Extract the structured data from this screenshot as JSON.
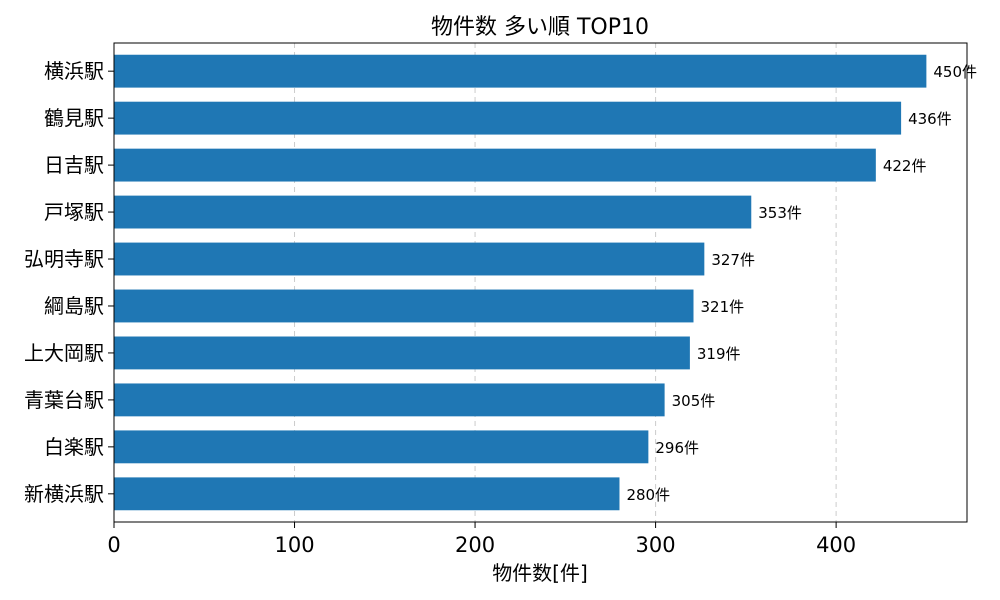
{
  "chart_data": {
    "type": "bar",
    "orientation": "horizontal",
    "title": "物件数 多い順 TOP10",
    "xlabel": "物件数[件]",
    "ylabel": "",
    "categories": [
      "横浜駅",
      "鶴見駅",
      "日吉駅",
      "戸塚駅",
      "弘明寺駅",
      "綱島駅",
      "上大岡駅",
      "青葉台駅",
      "白楽駅",
      "新横浜駅"
    ],
    "values": [
      450,
      436,
      422,
      353,
      327,
      321,
      319,
      305,
      296,
      280
    ],
    "data_labels": [
      "450件",
      "436件",
      "422件",
      "353件",
      "327件",
      "321件",
      "319件",
      "305件",
      "296件",
      "280件"
    ],
    "xlim": [
      0,
      472.5
    ],
    "xticks": [
      0,
      100,
      200,
      300,
      400
    ],
    "xtick_labels": [
      "0",
      "100",
      "200",
      "300",
      "400"
    ],
    "grid": "x-dashed",
    "legend": "none",
    "bar_color": "#1f77b4",
    "grid_color": "#cccccc"
  }
}
